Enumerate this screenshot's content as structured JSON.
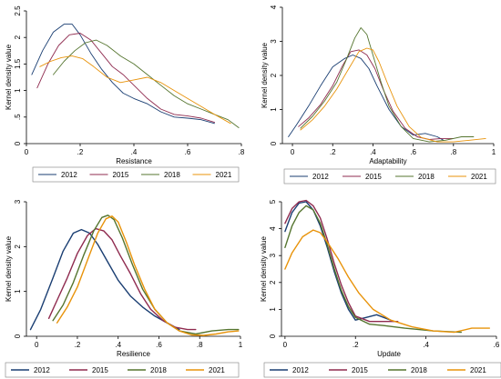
{
  "colors": {
    "2012": "#1a3e72",
    "2015": "#8f2b4f",
    "2018": "#55752f",
    "2021": "#e8930a",
    "axis": "#000000",
    "legend_border": "#7f7f7f"
  },
  "chart_data": [
    {
      "type": "line",
      "style": "light",
      "xlabel": "Resistance",
      "ylabel": "Kernel density value",
      "xlim": [
        0,
        0.8
      ],
      "ylim": [
        0,
        2.5
      ],
      "xticks": [
        0,
        0.2,
        0.4,
        0.6,
        0.8
      ],
      "xtick_labels": [
        "0",
        ".2",
        ".4",
        ".6",
        ".8"
      ],
      "yticks": [
        0,
        0.5,
        1,
        1.5,
        2,
        2.5
      ],
      "ytick_labels": [
        "0",
        ".5",
        "1",
        "1.5",
        "2",
        "2.5"
      ],
      "legend_position": "bottom",
      "series": [
        {
          "name": "2012",
          "color_key": "2012",
          "x": [
            0.02,
            0.06,
            0.1,
            0.14,
            0.17,
            0.2,
            0.24,
            0.28,
            0.32,
            0.36,
            0.4,
            0.45,
            0.5,
            0.55,
            0.6,
            0.65,
            0.7
          ],
          "y": [
            1.3,
            1.75,
            2.1,
            2.25,
            2.25,
            2.05,
            1.7,
            1.4,
            1.15,
            0.95,
            0.85,
            0.75,
            0.6,
            0.5,
            0.48,
            0.45,
            0.38
          ]
        },
        {
          "name": "2015",
          "color_key": "2015",
          "x": [
            0.04,
            0.08,
            0.12,
            0.16,
            0.2,
            0.24,
            0.28,
            0.32,
            0.36,
            0.4,
            0.45,
            0.5,
            0.55,
            0.6,
            0.65,
            0.7
          ],
          "y": [
            1.05,
            1.5,
            1.85,
            2.05,
            2.08,
            1.95,
            1.7,
            1.45,
            1.3,
            1.1,
            0.85,
            0.65,
            0.55,
            0.52,
            0.48,
            0.4
          ]
        },
        {
          "name": "2018",
          "color_key": "2018",
          "x": [
            0.1,
            0.14,
            0.18,
            0.22,
            0.26,
            0.3,
            0.35,
            0.4,
            0.45,
            0.5,
            0.55,
            0.6,
            0.65,
            0.7,
            0.75,
            0.79
          ],
          "y": [
            1.3,
            1.55,
            1.75,
            1.9,
            1.95,
            1.85,
            1.65,
            1.5,
            1.3,
            1.1,
            0.9,
            0.75,
            0.65,
            0.55,
            0.45,
            0.3
          ]
        },
        {
          "name": "2021",
          "color_key": "2021",
          "x": [
            0.05,
            0.09,
            0.13,
            0.17,
            0.21,
            0.25,
            0.3,
            0.35,
            0.4,
            0.45,
            0.5,
            0.55,
            0.6,
            0.65,
            0.7,
            0.76
          ],
          "y": [
            1.45,
            1.55,
            1.62,
            1.65,
            1.6,
            1.45,
            1.25,
            1.15,
            1.2,
            1.25,
            1.15,
            1.0,
            0.85,
            0.7,
            0.55,
            0.38
          ]
        }
      ],
      "legend_labels": [
        "2012",
        "2015",
        "2018",
        "2021"
      ]
    },
    {
      "type": "line",
      "style": "light",
      "xlabel": "Adaptability",
      "ylabel": "Kernel density value",
      "xlim": [
        -0.05,
        1.0
      ],
      "ylim": [
        0,
        4
      ],
      "xticks": [
        0,
        0.2,
        0.4,
        0.6,
        0.8,
        1
      ],
      "xtick_labels": [
        "0",
        ".2",
        ".4",
        ".6",
        ".8",
        "1"
      ],
      "yticks": [
        0,
        1,
        2,
        3,
        4
      ],
      "ytick_labels": [
        "0",
        "1",
        "2",
        "3",
        "4"
      ],
      "legend_position": "bottom",
      "series": [
        {
          "name": "2012",
          "color_key": "2012",
          "x": [
            -0.02,
            0.02,
            0.08,
            0.14,
            0.2,
            0.26,
            0.3,
            0.34,
            0.38,
            0.42,
            0.48,
            0.54,
            0.6,
            0.66,
            0.72,
            0.75
          ],
          "y": [
            0.2,
            0.55,
            1.1,
            1.7,
            2.25,
            2.5,
            2.6,
            2.5,
            2.2,
            1.7,
            1.0,
            0.5,
            0.25,
            0.3,
            0.2,
            0.1
          ]
        },
        {
          "name": "2015",
          "color_key": "2015",
          "x": [
            0.03,
            0.08,
            0.14,
            0.2,
            0.25,
            0.29,
            0.33,
            0.37,
            0.41,
            0.45,
            0.5,
            0.56,
            0.62,
            0.68,
            0.74,
            0.8
          ],
          "y": [
            0.5,
            0.75,
            1.15,
            1.7,
            2.3,
            2.7,
            2.75,
            2.6,
            2.2,
            1.6,
            0.95,
            0.45,
            0.2,
            0.12,
            0.15,
            0.15
          ]
        },
        {
          "name": "2018",
          "color_key": "2018",
          "x": [
            0.04,
            0.1,
            0.16,
            0.22,
            0.27,
            0.31,
            0.34,
            0.37,
            0.4,
            0.44,
            0.48,
            0.54,
            0.6,
            0.68,
            0.76,
            0.84,
            0.9
          ],
          "y": [
            0.45,
            0.8,
            1.25,
            1.8,
            2.5,
            3.1,
            3.4,
            3.2,
            2.6,
            1.8,
            1.1,
            0.5,
            0.15,
            0.05,
            0.1,
            0.2,
            0.2
          ]
        },
        {
          "name": "2021",
          "color_key": "2021",
          "x": [
            0.04,
            0.1,
            0.16,
            0.22,
            0.28,
            0.33,
            0.37,
            0.4,
            0.43,
            0.47,
            0.52,
            0.58,
            0.64,
            0.72,
            0.8,
            0.88,
            0.96
          ],
          "y": [
            0.4,
            0.7,
            1.1,
            1.6,
            2.2,
            2.7,
            2.8,
            2.75,
            2.4,
            1.8,
            1.1,
            0.5,
            0.18,
            0.05,
            0.05,
            0.1,
            0.15
          ]
        }
      ],
      "legend_labels": [
        "2012",
        "2015",
        "2018",
        "2021"
      ]
    },
    {
      "type": "line",
      "style": "bold",
      "xlabel": "Resilience",
      "ylabel": "Kernel density value",
      "xlim": [
        -0.05,
        1.0
      ],
      "ylim": [
        0,
        3
      ],
      "xticks": [
        0,
        0.2,
        0.4,
        0.6,
        0.8,
        1
      ],
      "xtick_labels": [
        "0",
        ".2",
        ".4",
        ".6",
        ".8",
        "1"
      ],
      "yticks": [
        0,
        1,
        2,
        3
      ],
      "ytick_labels": [
        "0",
        "1",
        "2",
        "3"
      ],
      "legend_position": "bottom",
      "series": [
        {
          "name": "2012",
          "color_key": "2012",
          "x": [
            -0.03,
            0.02,
            0.08,
            0.13,
            0.18,
            0.22,
            0.26,
            0.3,
            0.35,
            0.4,
            0.46,
            0.52,
            0.58,
            0.64,
            0.7
          ],
          "y": [
            0.15,
            0.6,
            1.3,
            1.9,
            2.3,
            2.38,
            2.3,
            2.05,
            1.65,
            1.25,
            0.9,
            0.65,
            0.45,
            0.3,
            0.15
          ]
        },
        {
          "name": "2015",
          "color_key": "2015",
          "x": [
            0.06,
            0.1,
            0.15,
            0.2,
            0.25,
            0.29,
            0.33,
            0.37,
            0.41,
            0.46,
            0.51,
            0.56,
            0.62,
            0.68,
            0.74,
            0.78
          ],
          "y": [
            0.4,
            0.8,
            1.3,
            1.85,
            2.25,
            2.4,
            2.35,
            2.15,
            1.8,
            1.4,
            0.95,
            0.6,
            0.35,
            0.2,
            0.15,
            0.15
          ]
        },
        {
          "name": "2018",
          "color_key": "2018",
          "x": [
            0.08,
            0.13,
            0.18,
            0.23,
            0.28,
            0.32,
            0.35,
            0.38,
            0.42,
            0.47,
            0.52,
            0.58,
            0.64,
            0.7,
            0.78,
            0.86,
            0.94,
            0.99
          ],
          "y": [
            0.35,
            0.7,
            1.2,
            1.8,
            2.35,
            2.65,
            2.7,
            2.6,
            2.2,
            1.6,
            1.05,
            0.6,
            0.3,
            0.12,
            0.05,
            0.12,
            0.15,
            0.15
          ]
        },
        {
          "name": "2021",
          "color_key": "2021",
          "x": [
            0.1,
            0.15,
            0.2,
            0.25,
            0.3,
            0.34,
            0.37,
            0.4,
            0.44,
            0.48,
            0.53,
            0.58,
            0.64,
            0.7,
            0.76,
            0.82,
            0.88,
            0.94,
            0.99
          ],
          "y": [
            0.3,
            0.65,
            1.1,
            1.7,
            2.3,
            2.62,
            2.68,
            2.55,
            2.1,
            1.6,
            1.05,
            0.6,
            0.3,
            0.12,
            0.03,
            0.02,
            0.05,
            0.1,
            0.12
          ]
        }
      ],
      "legend_labels": [
        "2012",
        "2015",
        "2018",
        "2021"
      ]
    },
    {
      "type": "line",
      "style": "bold",
      "xlabel": "Update",
      "ylabel": "Kernel density value",
      "xlim": [
        -0.01,
        0.6
      ],
      "ylim": [
        0,
        5
      ],
      "xticks": [
        0,
        0.2,
        0.4,
        0.6
      ],
      "xtick_labels": [
        "0",
        ".2",
        ".4",
        ".6"
      ],
      "yticks": [
        0,
        1,
        2,
        3,
        4,
        5
      ],
      "ytick_labels": [
        "0",
        "1",
        "2",
        "3",
        "4",
        "5"
      ],
      "legend_position": "bottom",
      "series": [
        {
          "name": "2012",
          "color_key": "2012",
          "x": [
            0.0,
            0.02,
            0.04,
            0.06,
            0.08,
            0.1,
            0.12,
            0.14,
            0.16,
            0.18,
            0.2,
            0.23,
            0.26,
            0.3
          ],
          "y": [
            3.9,
            4.6,
            4.95,
            5.0,
            4.7,
            4.1,
            3.3,
            2.4,
            1.6,
            1.0,
            0.6,
            0.7,
            0.8,
            0.6
          ]
        },
        {
          "name": "2015",
          "color_key": "2015",
          "x": [
            0.0,
            0.02,
            0.04,
            0.06,
            0.08,
            0.1,
            0.12,
            0.14,
            0.16,
            0.18,
            0.2,
            0.24,
            0.28,
            0.32
          ],
          "y": [
            4.2,
            4.75,
            5.0,
            5.05,
            4.85,
            4.4,
            3.6,
            2.7,
            1.9,
            1.25,
            0.75,
            0.55,
            0.55,
            0.55
          ]
        },
        {
          "name": "2018",
          "color_key": "2018",
          "x": [
            0.0,
            0.02,
            0.04,
            0.06,
            0.08,
            0.1,
            0.12,
            0.14,
            0.16,
            0.18,
            0.2,
            0.24,
            0.28,
            0.34,
            0.42,
            0.5
          ],
          "y": [
            3.3,
            4.1,
            4.6,
            4.85,
            4.7,
            4.2,
            3.4,
            2.5,
            1.7,
            1.1,
            0.7,
            0.45,
            0.4,
            0.3,
            0.2,
            0.15
          ]
        },
        {
          "name": "2021",
          "color_key": "2021",
          "x": [
            0.0,
            0.02,
            0.05,
            0.08,
            0.1,
            0.12,
            0.15,
            0.18,
            0.21,
            0.25,
            0.3,
            0.36,
            0.42,
            0.48,
            0.53,
            0.58
          ],
          "y": [
            2.5,
            3.1,
            3.7,
            3.95,
            3.85,
            3.5,
            2.9,
            2.2,
            1.6,
            1.0,
            0.6,
            0.35,
            0.2,
            0.15,
            0.3,
            0.3
          ]
        }
      ],
      "legend_labels": [
        "2012",
        "2015",
        "2018",
        "2021"
      ]
    }
  ]
}
